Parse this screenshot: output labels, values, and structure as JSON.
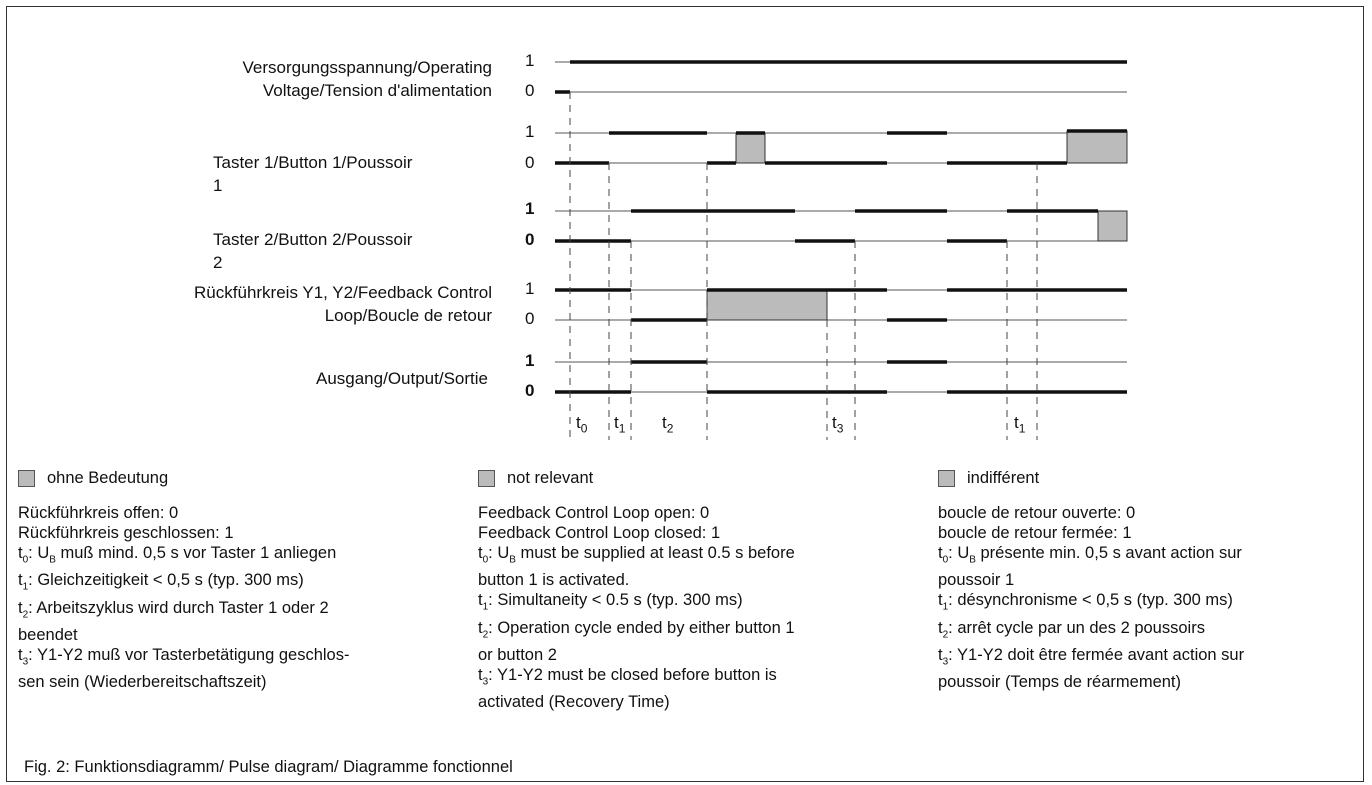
{
  "signals": [
    {
      "label_lines": [
        "Versorgungsspannung/Operating",
        "Voltage/Tension d'alimentation"
      ],
      "one": "1",
      "zero": "0"
    },
    {
      "label_lines": [
        "Taster 1/Button 1/Poussoir",
        "1"
      ],
      "one": "1",
      "zero": "0"
    },
    {
      "label_lines": [
        "Taster 2/Button 2/Poussoir",
        "2"
      ],
      "one": "1",
      "zero": "0"
    },
    {
      "label_lines": [
        "Rückführkreis Y1, Y2/Feedback Control",
        "Loop/Boucle de retour"
      ],
      "one": "1",
      "zero": "0"
    },
    {
      "label_lines": [
        "Ausgang/Output/Sortie"
      ],
      "one": "1",
      "zero": "0"
    }
  ],
  "time_markers": {
    "t0": {
      "base": "t",
      "sub": "0"
    },
    "t1a": {
      "base": "t",
      "sub": "1"
    },
    "t2": {
      "base": "t",
      "sub": "2"
    },
    "t3": {
      "base": "t",
      "sub": "3"
    },
    "t1b": {
      "base": "t",
      "sub": "1"
    }
  },
  "legend_de": {
    "swatch": "ohne Bedeutung",
    "open": "Rückführkreis offen: 0",
    "closed": "Rückführkreis geschlossen: 1",
    "t0": {
      "pre": "t",
      "sub": "0",
      "mid": ": U",
      "sub2": "B",
      "post": " muß mind. 0,5 s vor Taster 1 anliegen"
    },
    "t1": {
      "pre": "t",
      "sub": "1",
      "post": ": Gleichzeitigkeit < 0,5 s (typ. 300 ms)"
    },
    "t2": {
      "pre": "t",
      "sub": "2",
      "post1": ": Arbeitszyklus wird durch Taster 1 oder 2",
      "post2": "beendet"
    },
    "t3": {
      "pre": "t",
      "sub": "3",
      "post1": ": Y1-Y2 muß vor Tasterbetätigung geschlos-",
      "post2": "sen sein (Wiederbereitschaftszeit)"
    }
  },
  "legend_en": {
    "swatch": "not relevant",
    "open": "Feedback Control Loop open: 0",
    "closed": "Feedback Control Loop closed: 1",
    "t0": {
      "pre": "t",
      "sub": "0",
      "mid": ":  U",
      "sub2": "B",
      "post1": " must be supplied at least 0.5 s before",
      "post2": "button 1 is activated."
    },
    "t1": {
      "pre": "t",
      "sub": "1",
      "post": ":  Simultaneity < 0.5 s (typ. 300 ms)"
    },
    "t2": {
      "pre": "t",
      "sub": "2",
      "post1": ":  Operation cycle ended by either button 1",
      "post2": "or button 2"
    },
    "t3": {
      "pre": "t",
      "sub": "3",
      "post1": ":  Y1-Y2 must be closed before button is",
      "post2": "activated (Recovery Time)"
    }
  },
  "legend_fr": {
    "swatch": "indifférent",
    "open": "boucle de retour ouverte: 0",
    "closed": "boucle de retour fermée: 1",
    "t0": {
      "pre": "t",
      "sub": "0",
      "mid": ": U",
      "sub2": "B",
      "post1": " présente min. 0,5 s avant action sur",
      "post2": "poussoir 1"
    },
    "t1": {
      "pre": "t",
      "sub": "1",
      "post": ": désynchronisme  < 0,5 s (typ. 300 ms)"
    },
    "t2": {
      "pre": "t",
      "sub": "2",
      "post": ": arrêt cycle par un des 2 poussoirs"
    },
    "t3": {
      "pre": "t",
      "sub": "3",
      "post1": ": Y1-Y2 doit être fermée avant action sur",
      "post2": "poussoir (Temps de réarmement)"
    }
  },
  "caption": "Fig. 2: Funktionsdiagramm/ Pulse diagram/ Diagramme fonctionnel",
  "colors": {
    "line": "#111111",
    "dont_care": "#bbbbbb",
    "guide": "#444444"
  }
}
